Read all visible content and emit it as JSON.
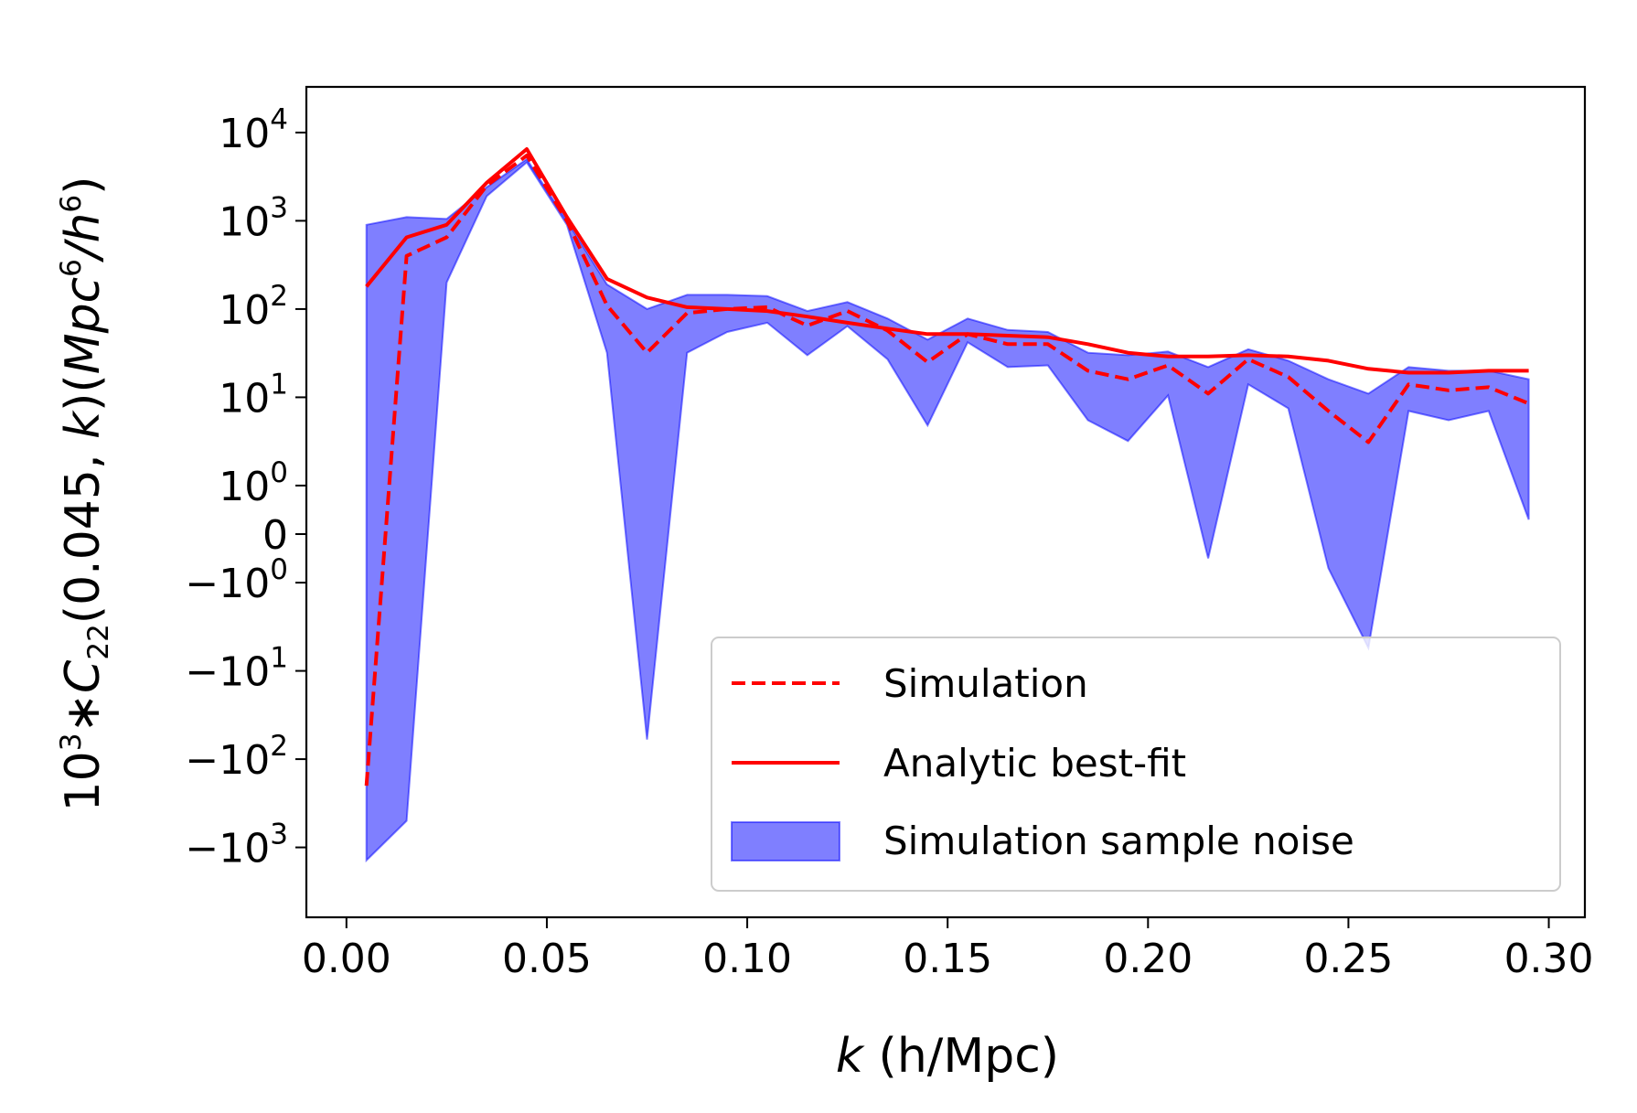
{
  "chart_data": {
    "type": "line",
    "title": "",
    "xlabel": {
      "var": "k",
      "rest": " (h/Mpc)"
    },
    "ylabel": {
      "base": "10",
      "exp": "3",
      "star": "∗",
      "var": "C",
      "sub": "22",
      "args": "(0.045, ",
      "argvar": "k",
      "mid": ")(",
      "unit": "Mpc",
      "unitexp": "6",
      "slash": "/",
      "h": "h",
      "hexp": "6",
      "close": ")"
    },
    "xscale": "linear",
    "yscale": "symlog",
    "symlog_linthresh": 1,
    "xlim": [
      -0.01,
      0.309
    ],
    "ylim": [
      -5000,
      20000
    ],
    "xticks": [
      {
        "v": 0.0,
        "label": "0.00"
      },
      {
        "v": 0.05,
        "label": "0.05"
      },
      {
        "v": 0.1,
        "label": "0.10"
      },
      {
        "v": 0.15,
        "label": "0.15"
      },
      {
        "v": 0.2,
        "label": "0.20"
      },
      {
        "v": 0.25,
        "label": "0.25"
      },
      {
        "v": 0.3,
        "label": "0.30"
      }
    ],
    "yticks": [
      {
        "v": 10000,
        "base": "10",
        "exp": "4",
        "sign": ""
      },
      {
        "v": 1000,
        "base": "10",
        "exp": "3",
        "sign": ""
      },
      {
        "v": 100,
        "base": "10",
        "exp": "2",
        "sign": ""
      },
      {
        "v": 10,
        "base": "10",
        "exp": "1",
        "sign": ""
      },
      {
        "v": 1,
        "base": "10",
        "exp": "0",
        "sign": ""
      },
      {
        "v": 0,
        "base": "0",
        "exp": "",
        "sign": ""
      },
      {
        "v": -1,
        "base": "10",
        "exp": "0",
        "sign": "−"
      },
      {
        "v": -10,
        "base": "10",
        "exp": "1",
        "sign": "−"
      },
      {
        "v": -100,
        "base": "10",
        "exp": "2",
        "sign": "−"
      },
      {
        "v": -1000,
        "base": "10",
        "exp": "3",
        "sign": "−"
      }
    ],
    "x": [
      0.005,
      0.015,
      0.025,
      0.035,
      0.045,
      0.055,
      0.065,
      0.075,
      0.085,
      0.095,
      0.105,
      0.115,
      0.125,
      0.135,
      0.145,
      0.155,
      0.165,
      0.175,
      0.185,
      0.195,
      0.205,
      0.215,
      0.225,
      0.235,
      0.245,
      0.255,
      0.265,
      0.275,
      0.285,
      0.295
    ],
    "series": [
      {
        "name": "Simulation",
        "style": "dashed",
        "color": "#ff0000",
        "values": [
          -200,
          400,
          650,
          2500,
          5500,
          1000,
          110,
          32,
          90,
          100,
          105,
          65,
          95,
          57,
          25,
          52,
          40,
          40,
          20,
          16,
          23,
          11,
          27,
          17,
          7,
          3.1,
          14,
          12,
          13,
          8.5
        ]
      },
      {
        "name": "Analytic best-fit",
        "style": "solid",
        "color": "#ff0000",
        "values": [
          180,
          650,
          900,
          2700,
          6500,
          1100,
          220,
          135,
          105,
          100,
          95,
          82,
          70,
          60,
          52,
          52,
          50,
          48,
          40,
          32,
          29,
          29,
          30,
          29,
          26,
          21,
          19,
          19,
          20,
          20
        ]
      }
    ],
    "band": {
      "name": "Simulation sample noise",
      "color": "#0000ff",
      "alpha": 0.5,
      "upper": [
        900,
        1100,
        1050,
        2400,
        5000,
        1000,
        190,
        100,
        145,
        145,
        140,
        95,
        120,
        78,
        45,
        78,
        58,
        55,
        32,
        30,
        33,
        22,
        35,
        26,
        16,
        11,
        22,
        20,
        20,
        16
      ],
      "lower": [
        -1400,
        -500,
        200,
        1900,
        4600,
        900,
        32,
        -60,
        32,
        55,
        70,
        30,
        64,
        27,
        4.8,
        42,
        22,
        23,
        5.5,
        3.2,
        10.5,
        -0.5,
        14,
        7.5,
        -0.7,
        -5.5,
        7,
        5.5,
        7,
        0.3
      ]
    },
    "legend": {
      "position": "lower-right",
      "entries": [
        "Simulation",
        "Analytic best-fit",
        "Simulation sample noise"
      ]
    },
    "grid": false
  }
}
